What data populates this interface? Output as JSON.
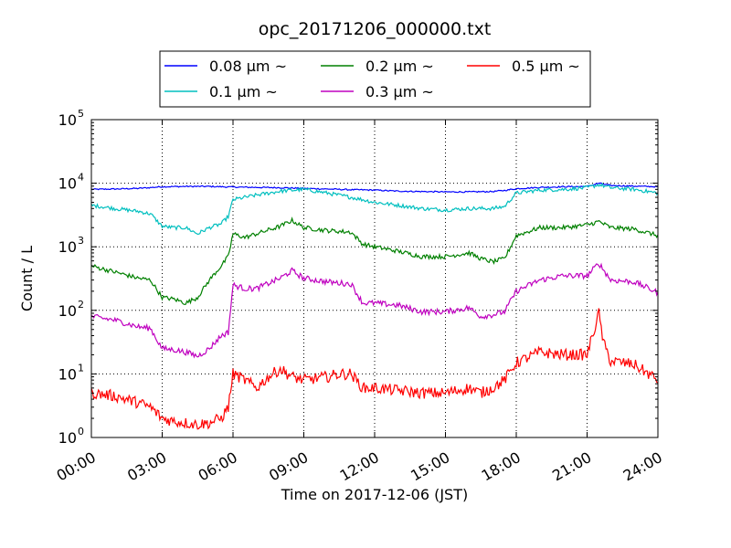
{
  "chart_data": {
    "type": "line",
    "title": "opc_20171206_000000.txt",
    "xlabel": "Time on 2017-12-06 (JST)",
    "ylabel": "Count / L",
    "y_scale": "log",
    "ylim": [
      1,
      100000
    ],
    "x_unit": "hours",
    "xlim": [
      0,
      24
    ],
    "x_ticks": [
      0,
      3,
      6,
      9,
      12,
      15,
      18,
      21,
      24
    ],
    "x_tick_labels": [
      "00:00",
      "03:00",
      "06:00",
      "09:00",
      "12:00",
      "15:00",
      "18:00",
      "21:00",
      "24:00"
    ],
    "y_ticks": [
      1,
      10,
      100,
      1000,
      10000,
      100000
    ],
    "y_tick_labels": [
      {
        "base": "10",
        "exp": "0"
      },
      {
        "base": "10",
        "exp": "1"
      },
      {
        "base": "10",
        "exp": "2"
      },
      {
        "base": "10",
        "exp": "3"
      },
      {
        "base": "10",
        "exp": "4"
      },
      {
        "base": "10",
        "exp": "5"
      }
    ],
    "grid": true,
    "legend_position": "top",
    "series": [
      {
        "name": "0.08 µm ~",
        "color": "#0000ff",
        "x": [
          0,
          1,
          2,
          3,
          4,
          5,
          6,
          7,
          8,
          9,
          10,
          11,
          12,
          13,
          14,
          15,
          16,
          17,
          17.5,
          18,
          19,
          20,
          21,
          21.5,
          22,
          23,
          24
        ],
        "y": [
          8000,
          8100,
          8300,
          8800,
          8900,
          8900,
          8700,
          8600,
          8500,
          8300,
          8100,
          7900,
          7800,
          7500,
          7400,
          7300,
          7300,
          7400,
          7700,
          8200,
          8600,
          8800,
          8900,
          10000,
          9200,
          9000,
          8800
        ]
      },
      {
        "name": "0.1 µm ~",
        "color": "#00bfbf",
        "x": [
          0,
          1,
          2,
          2.5,
          3,
          3.5,
          4,
          4.5,
          5,
          5.5,
          5.8,
          6,
          6.5,
          7,
          8,
          9,
          10,
          11,
          11.5,
          12,
          13,
          14,
          15,
          16,
          17,
          17.5,
          18,
          19,
          20,
          21,
          21.5,
          22,
          23,
          24
        ],
        "y": [
          4500,
          4000,
          3600,
          3300,
          2100,
          2000,
          2000,
          1600,
          2000,
          2300,
          3000,
          5500,
          6000,
          6500,
          7500,
          8000,
          7000,
          6000,
          5500,
          5000,
          4500,
          4000,
          3800,
          4000,
          4000,
          4300,
          7000,
          7800,
          8000,
          8500,
          9500,
          8500,
          8000,
          7000
        ]
      },
      {
        "name": "0.2 µm ~",
        "color": "#008000",
        "x": [
          0,
          1,
          2,
          2.5,
          3,
          3.5,
          4,
          4.5,
          5,
          5.5,
          5.8,
          6,
          6.5,
          7,
          8,
          8.5,
          9,
          10,
          11,
          11.5,
          12,
          13,
          14,
          15,
          16,
          16.5,
          17,
          17.5,
          18,
          19,
          20,
          21,
          21.5,
          22,
          23,
          24
        ],
        "y": [
          500,
          400,
          320,
          300,
          160,
          150,
          130,
          160,
          300,
          500,
          700,
          1600,
          1400,
          1600,
          2100,
          2600,
          2000,
          1800,
          1700,
          1100,
          1000,
          850,
          700,
          700,
          800,
          650,
          580,
          650,
          1500,
          2000,
          2000,
          2200,
          2500,
          2000,
          1900,
          1500
        ]
      },
      {
        "name": "0.3 µm ~",
        "color": "#bf00bf",
        "x": [
          0,
          1,
          2,
          2.5,
          3,
          3.5,
          4,
          4.5,
          5,
          5.5,
          5.8,
          6,
          6.5,
          7,
          8,
          8.5,
          9,
          10,
          11,
          11.5,
          12,
          13,
          14,
          15,
          16,
          16.5,
          17,
          17.5,
          18,
          19,
          20,
          21,
          21.5,
          22,
          23,
          24
        ],
        "y": [
          80,
          70,
          55,
          52,
          25,
          24,
          22,
          19,
          25,
          40,
          45,
          250,
          220,
          220,
          320,
          420,
          320,
          280,
          260,
          130,
          130,
          120,
          95,
          95,
          110,
          80,
          85,
          95,
          200,
          300,
          350,
          350,
          550,
          300,
          280,
          190
        ]
      },
      {
        "name": "0.5 µm ~",
        "color": "#ff0000",
        "x": [
          0,
          1,
          2,
          2.5,
          3,
          3.5,
          4,
          4.5,
          5,
          5.5,
          5.8,
          6,
          6.5,
          7,
          7.5,
          8,
          8.5,
          9,
          10,
          10.5,
          11,
          11.5,
          12,
          13,
          14,
          15,
          16,
          16.5,
          17,
          17.5,
          18,
          19,
          20,
          21,
          21.5,
          21.7,
          22,
          23,
          24
        ],
        "y": [
          5,
          4.5,
          3.5,
          3,
          2,
          1.8,
          1.7,
          1.6,
          1.7,
          2,
          3,
          10,
          8,
          6,
          9,
          12,
          9,
          8,
          9,
          10,
          10,
          6,
          6,
          5.5,
          5,
          5,
          6,
          5,
          6,
          8,
          15,
          22,
          20,
          20,
          90,
          30,
          16,
          14,
          8
        ]
      }
    ]
  }
}
